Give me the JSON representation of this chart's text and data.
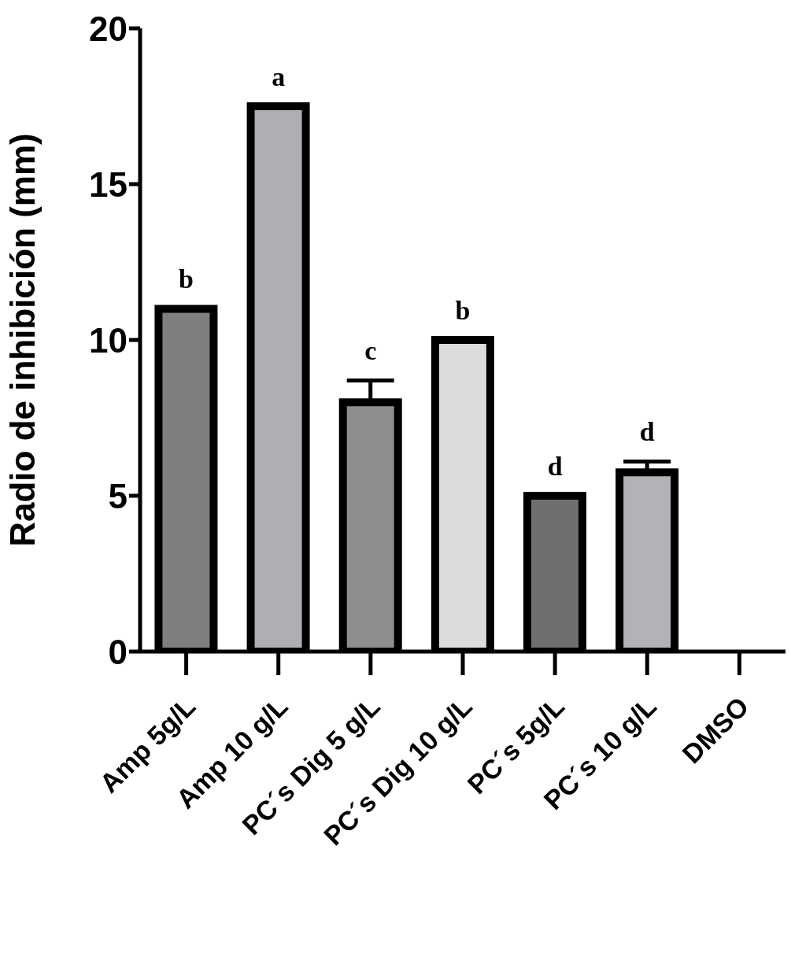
{
  "chart_data": {
    "type": "bar",
    "ylabel": "Radio de inhibición (mm)",
    "categories": [
      "Amp 5g/L",
      "Amp 10 g/L",
      "PC´s Dig 5 g/L",
      "PC´s Dig 10 g/L",
      "PC´s 5g/L",
      "PC´s 10 g/L",
      "DMSO"
    ],
    "values": [
      11,
      17.5,
      8,
      10,
      5,
      5.75,
      0
    ],
    "colors": [
      "#7f7f7f",
      "#afafb3",
      "#8e8e8e",
      "#dcdcdc",
      "#6f6f6f",
      "#b3b3b7",
      null
    ],
    "errors": [
      null,
      null,
      [
        8,
        8.7
      ],
      null,
      null,
      [
        5.75,
        6.1
      ],
      null
    ],
    "ylim": [
      0,
      20
    ],
    "yticks": [
      0,
      5,
      10,
      15,
      20
    ],
    "grid": false,
    "annotations": [
      {
        "text": "b",
        "x": "Amp 5g/L",
        "y": 11
      },
      {
        "text": "a",
        "x": "Amp 10 g/L",
        "y": 17.5
      },
      {
        "text": "c",
        "x": "PC´s Dig 5 g/L",
        "y": 8.7
      },
      {
        "text": "b",
        "x": "PC´s Dig 10 g/L",
        "y": 10
      },
      {
        "text": "d",
        "x": "PC´s 5g/L",
        "y": 5
      },
      {
        "text": "d",
        "x": "PC´s 10 g/L",
        "y": 6.1
      }
    ]
  }
}
